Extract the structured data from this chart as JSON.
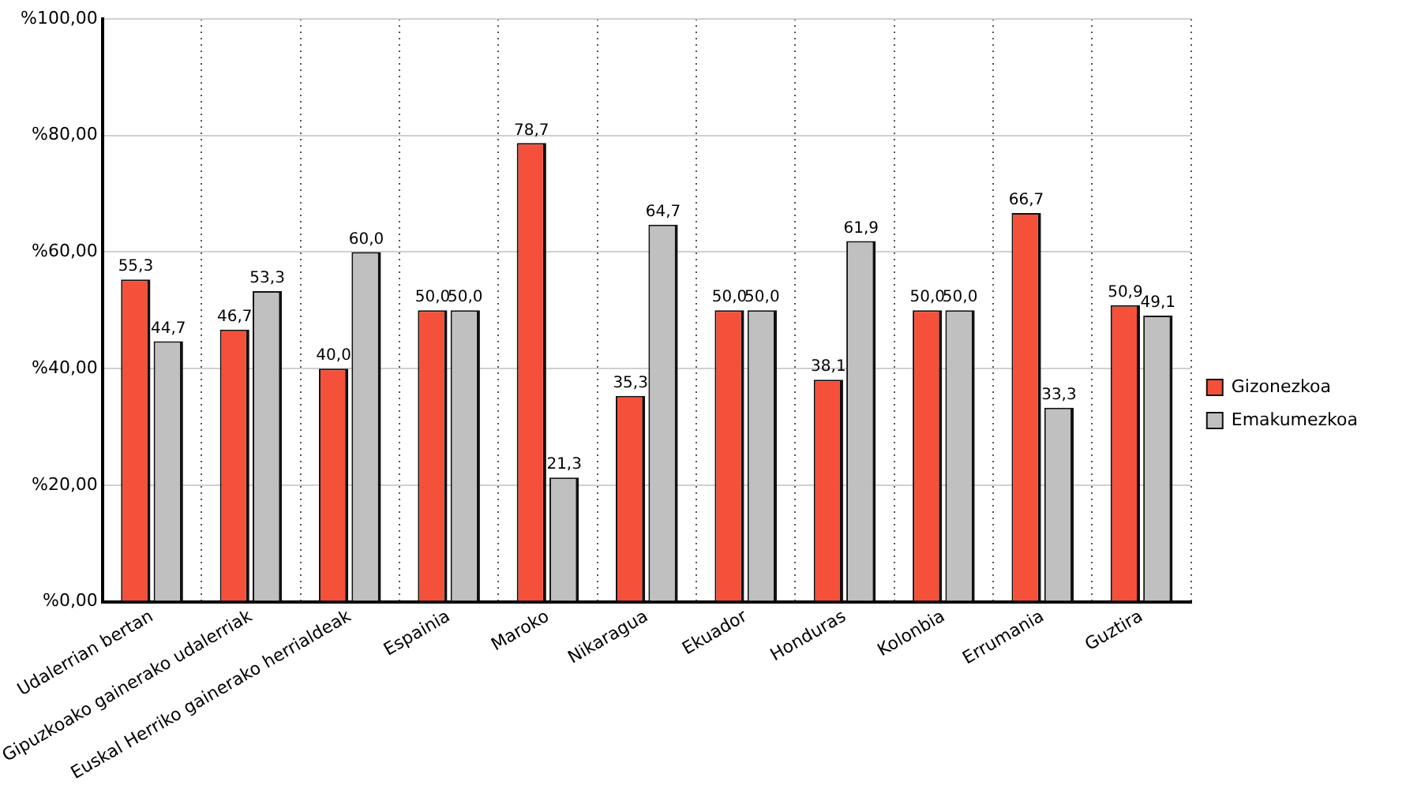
{
  "chart_data": {
    "type": "bar",
    "categories": [
      "Udalerrian bertan",
      "Gipuzkoako gainerako udalerriak",
      "Euskal Herriko gainerako herrialdeak",
      "Espainia",
      "Maroko",
      "Nikaragua",
      "Ekuador",
      "Honduras",
      "Kolonbia",
      "Errumania",
      "Guztira"
    ],
    "series": [
      {
        "name": "Gizonezkoa",
        "color": "#f5503a",
        "values": [
          55.3,
          46.7,
          40.0,
          50.0,
          78.7,
          35.3,
          50.0,
          38.1,
          50.0,
          66.7,
          50.9
        ],
        "value_labels": [
          "55,3",
          "46,7",
          "40,0",
          "50,0",
          "78,7",
          "35,3",
          "50,0",
          "38,1",
          "50,0",
          "66,7",
          "50,9"
        ]
      },
      {
        "name": "Emakumezkoa",
        "color": "#c0c0c0",
        "values": [
          44.7,
          53.3,
          60.0,
          50.0,
          21.3,
          64.7,
          50.0,
          61.9,
          50.0,
          33.3,
          49.1
        ],
        "value_labels": [
          "44,7",
          "53,3",
          "60,0",
          "50,0",
          "21,3",
          "64,7",
          "50,0",
          "61,9",
          "50,0",
          "33,3",
          "49,1"
        ]
      }
    ],
    "ylim": [
      0,
      100
    ],
    "yticks": [
      {
        "value": 0,
        "label": "%0,00"
      },
      {
        "value": 20,
        "label": "%20,00"
      },
      {
        "value": 40,
        "label": "%40,00"
      },
      {
        "value": 60,
        "label": "%60,00"
      },
      {
        "value": 80,
        "label": "%80,00"
      },
      {
        "value": 100,
        "label": "%100,00"
      }
    ],
    "grid": true,
    "legend": "right"
  }
}
